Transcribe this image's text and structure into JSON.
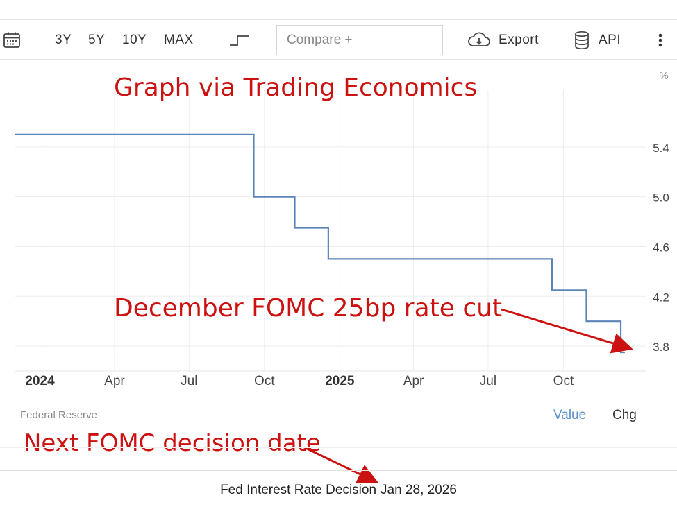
{
  "toolbar": {
    "ranges": [
      "3Y",
      "5Y",
      "10Y",
      "MAX"
    ],
    "compare_placeholder": "Compare +",
    "export_label": "Export",
    "api_label": "API"
  },
  "annotations": {
    "header": "Graph via Trading Economics",
    "rate_cut": "December FOMC 25bp rate cut",
    "next_decision": "Next FOMC decision date",
    "color": "#cc1111"
  },
  "footer": {
    "source": "Federal Reserve",
    "value_tab": "Value",
    "chg_tab": "Chg",
    "decision_label": "Fed Interest Rate Decision",
    "decision_date": "Jan 28, 2026"
  },
  "chart_data": {
    "type": "line",
    "step": true,
    "unit": "%",
    "x": [
      "2023-12-01",
      "2024-09-18",
      "2024-11-07",
      "2024-12-18",
      "2025-09-17",
      "2025-10-29",
      "2025-12-10",
      "2025-12-15"
    ],
    "values": [
      5.5,
      5.0,
      4.75,
      4.5,
      4.25,
      4.0,
      3.75,
      3.75
    ],
    "x_ticks": [
      {
        "date": "2024-01-01",
        "label": "2024",
        "bold": true
      },
      {
        "date": "2024-04-01",
        "label": "Apr"
      },
      {
        "date": "2024-07-01",
        "label": "Jul"
      },
      {
        "date": "2024-10-01",
        "label": "Oct"
      },
      {
        "date": "2025-01-01",
        "label": "2025",
        "bold": true
      },
      {
        "date": "2025-04-01",
        "label": "Apr"
      },
      {
        "date": "2025-07-01",
        "label": "Jul"
      },
      {
        "date": "2025-10-01",
        "label": "Oct"
      }
    ],
    "y_ticks": [
      3.8,
      4.2,
      4.6,
      5.0,
      5.4
    ],
    "y_tick_labels": [
      "3.8",
      "4.2",
      "4.6",
      "5.0",
      "5.4"
    ],
    "ylim": [
      3.6,
      5.8
    ],
    "xlim": [
      "2023-12-01",
      "2026-01-01"
    ],
    "line_color": "#5b84b8",
    "grid": true
  }
}
